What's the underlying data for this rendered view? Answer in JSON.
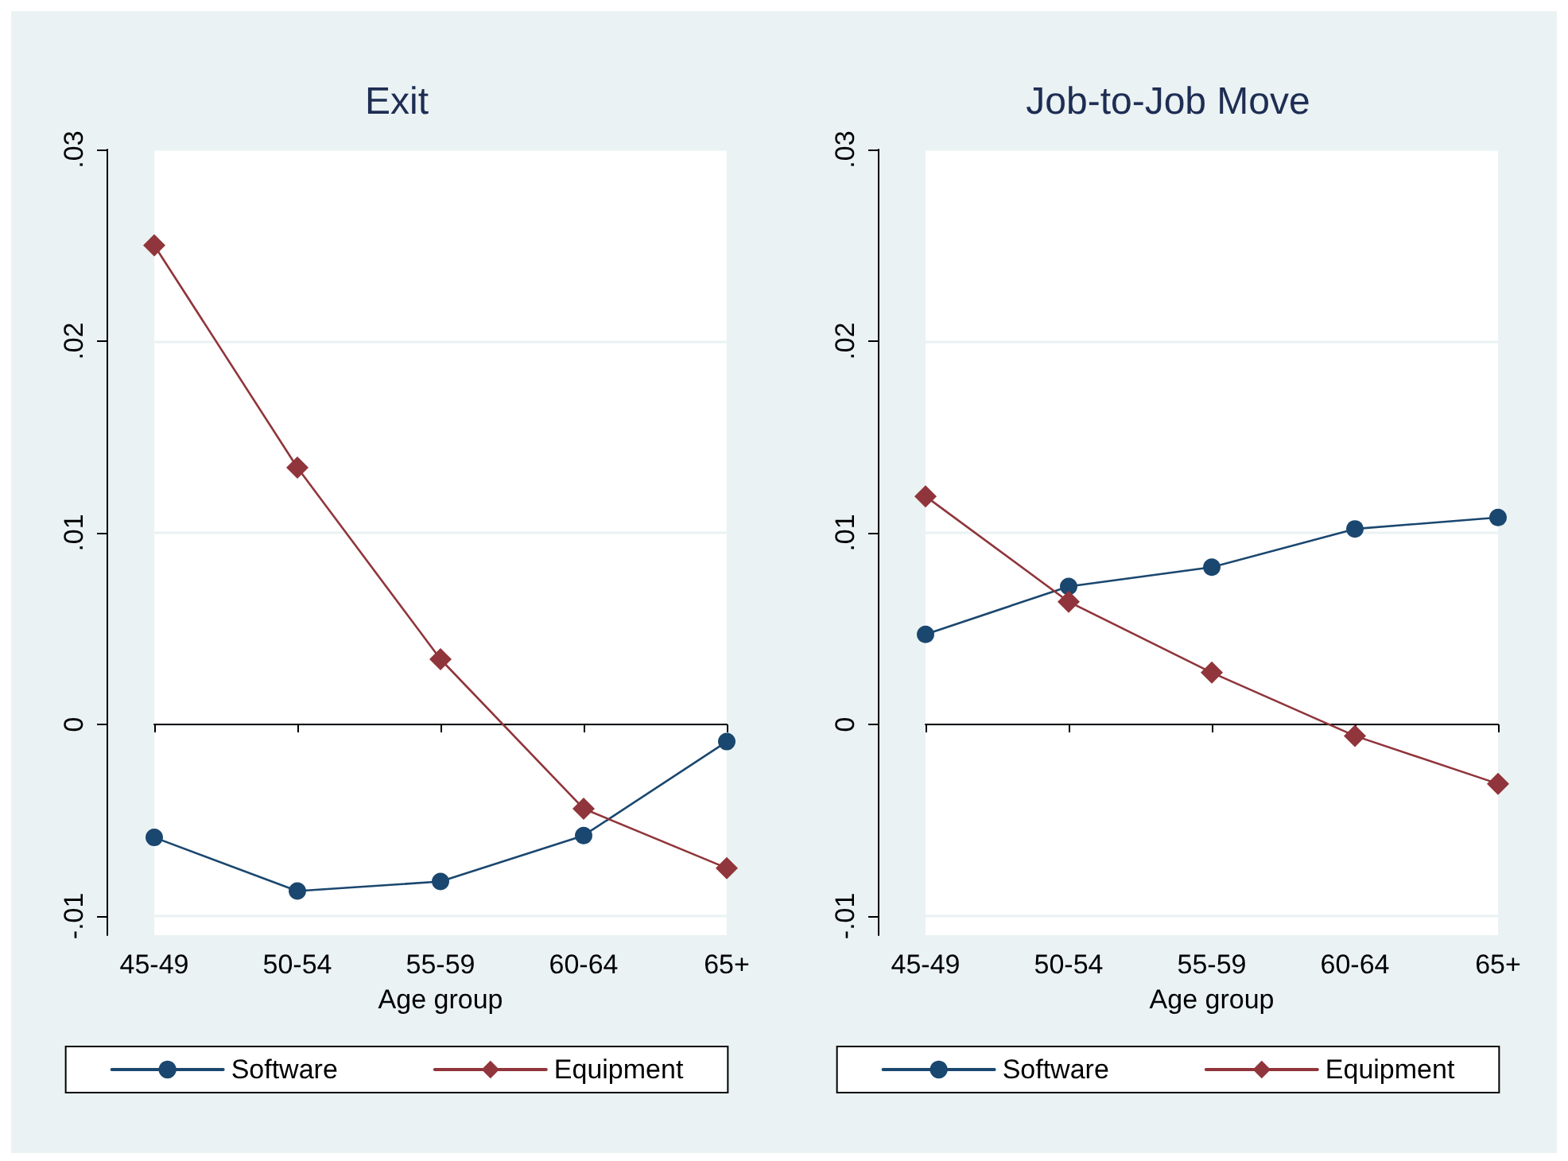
{
  "chart_data": [
    {
      "type": "line",
      "title": "Exit",
      "xlabel": "Age group",
      "categories": [
        "45-49",
        "50-54",
        "55-59",
        "60-64",
        "65+"
      ],
      "ylim": [
        -0.011,
        0.03
      ],
      "yticks": [
        {
          "value": -0.01,
          "label": "-.01"
        },
        {
          "value": 0,
          "label": "0"
        },
        {
          "value": 0.01,
          "label": ".01"
        },
        {
          "value": 0.02,
          "label": ".02"
        },
        {
          "value": 0.03,
          "label": ".03"
        }
      ],
      "grid": "y",
      "legend": "bottom",
      "series": [
        {
          "name": "Software",
          "color": "#1a476f",
          "marker": "circle",
          "values": [
            -0.0059,
            -0.0087,
            -0.0082,
            -0.0058,
            -0.0009
          ]
        },
        {
          "name": "Equipment",
          "color": "#90353b",
          "marker": "diamond",
          "values": [
            0.025,
            0.0134,
            0.0034,
            -0.0044,
            -0.0075
          ]
        }
      ]
    },
    {
      "type": "line",
      "title": "Job-to-Job Move",
      "xlabel": "Age group",
      "categories": [
        "45-49",
        "50-54",
        "55-59",
        "60-64",
        "65+"
      ],
      "ylim": [
        -0.011,
        0.03
      ],
      "yticks": [
        {
          "value": -0.01,
          "label": "-.01"
        },
        {
          "value": 0,
          "label": "0"
        },
        {
          "value": 0.01,
          "label": ".01"
        },
        {
          "value": 0.02,
          "label": ".02"
        },
        {
          "value": 0.03,
          "label": ".03"
        }
      ],
      "grid": "y",
      "legend": "bottom",
      "series": [
        {
          "name": "Software",
          "color": "#1a476f",
          "marker": "circle",
          "values": [
            0.0047,
            0.0072,
            0.0082,
            0.0102,
            0.0108
          ]
        },
        {
          "name": "Equipment",
          "color": "#90353b",
          "marker": "diamond",
          "values": [
            0.0119,
            0.0064,
            0.0027,
            -0.0006,
            -0.0031
          ]
        }
      ]
    }
  ]
}
